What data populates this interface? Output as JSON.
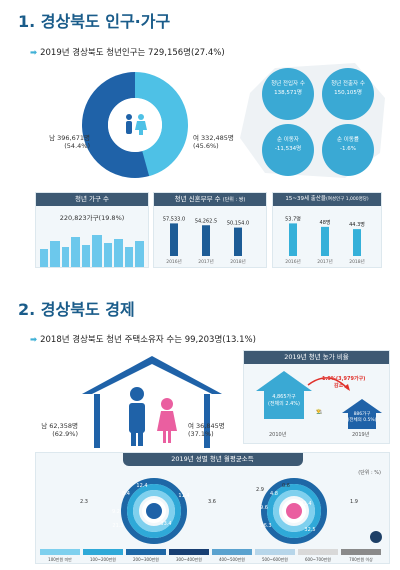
{
  "section1": {
    "title": "1. 경상북도 인구·가구",
    "subtitle": "2019년 경상북도 청년인구는 729,156명(27.4%)",
    "male": {
      "label": "남 396,671명",
      "pct": "(54.4%)"
    },
    "female": {
      "label": "여 332,485명",
      "pct": "(45.6%)"
    },
    "circles": [
      {
        "label": "청년 전입자 수",
        "value": "138,571명"
      },
      {
        "label": "청년 전출자 수",
        "value": "150,105명"
      },
      {
        "label": "순 이동자",
        "value": "-11,534명"
      },
      {
        "label": "순 이동률",
        "value": "-1.6%"
      }
    ],
    "households": {
      "title": "청년 가구 수",
      "value": "220,823가구(19.8%)"
    },
    "newlyweds": {
      "title": "청년 신혼부부 수",
      "unit": "(단위 : 쌍)",
      "years": [
        "2016년",
        "2017년",
        "2018년"
      ],
      "values": [
        "57,533.0",
        "54,262.5",
        "50,154.0"
      ],
      "nums": [
        57533,
        54262.5,
        50154
      ]
    },
    "birthrate": {
      "title": "15~39세 출산율",
      "unit": "(여성인구 1,000명당)",
      "years": [
        "2016년",
        "2017년",
        "2018년"
      ],
      "values": [
        "53.7명",
        "48명",
        "44.3명"
      ],
      "nums": [
        53.7,
        48,
        44.3
      ]
    }
  },
  "section2": {
    "title": "2. 경상북도 경제",
    "subtitle": "2018년 경상북도 청년 주택소유자 수는 99,203명(13.1%)",
    "male": {
      "label": "남 62,358명",
      "pct": "(62.9%)"
    },
    "female": {
      "label": "여 36,845명",
      "pct": "(37.1%)"
    },
    "farm": {
      "title": "2019년 청년 농가 비율",
      "y2010": {
        "value": "4,865가구",
        "detail": "(전체의 2.4%)",
        "year": "2010년"
      },
      "y2019": {
        "value": "886가구",
        "detail": "(전체의 0.5%)",
        "year": "2019년"
      },
      "change": "1.9%(3,979가구)",
      "change_label": "감소"
    },
    "income": {
      "title": "2019년 성별 청년 월평균소득",
      "unit": "(단위 : %)",
      "male_labels": [
        "2.3",
        "3.6",
        "8.4",
        "12.4",
        "9.2",
        "11.4",
        "21.3",
        "33.4"
      ],
      "female_labels": [
        "2.9",
        "0.6",
        "1.9",
        "4.8",
        "9.6",
        "21.4",
        "26.3",
        "32.5"
      ],
      "legend": [
        "100만원 미만",
        "100~200만원",
        "200~300만원",
        "300~400만원",
        "400~500만원",
        "500~600만원",
        "600~700만원",
        "700만원 이상"
      ],
      "colors": [
        "#7fd0ee",
        "#2fa9d8",
        "#1e67a6",
        "#173e72",
        "#5aa2cf",
        "#b7d6ea",
        "#d9d9d9",
        "#8a8a8a"
      ]
    }
  }
}
